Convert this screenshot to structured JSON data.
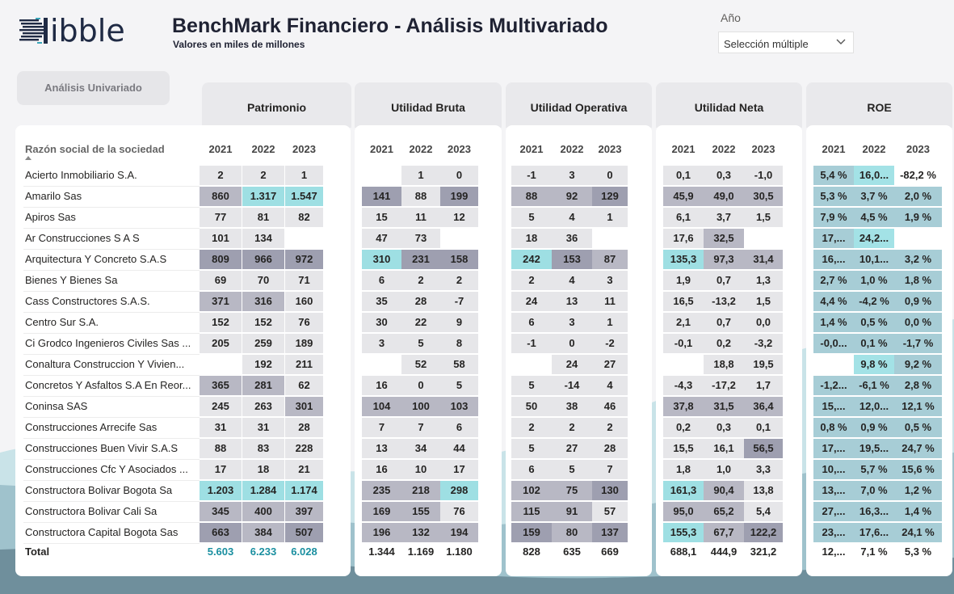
{
  "header": {
    "logo_text": "ibble",
    "title": "BenchMark Financiero - Análisis Multivariado",
    "subtitle": "Valores en miles de millones",
    "year_label": "Año",
    "year_slicer_value": "Selección múltiple"
  },
  "nav": {
    "univariate_button": "Análisis Univariado"
  },
  "columns_header": "Razón social de la sociedad",
  "years": [
    "2021",
    "2022",
    "2023"
  ],
  "total_label": "Total",
  "companies": [
    "Acierto Inmobiliario S.A.",
    "Amarilo Sas",
    "Apiros Sas",
    "Ar Construcciones S A S",
    "Arquitectura Y Concreto S.A.S",
    "Bienes Y Bienes Sa",
    "Cass Constructores S.A.S.",
    "Centro Sur S.A.",
    "Ci Grodco Ingenieros Civiles Sas ...",
    "Conaltura Construccion Y Vivien...",
    "Concretos Y Asfaltos S.A En Reor...",
    "Coninsa SAS",
    "Construcciones Arrecife Sas",
    "Construcciones Buen Vivir S.A.S",
    "Construcciones Cfc Y Asociados ...",
    "Constructora Bolivar Bogota Sa",
    "Constructora Bolivar Cali Sa",
    "Constructora Capital Bogota Sas"
  ],
  "metrics": [
    {
      "name": "Patrimonio",
      "rows": [
        [
          "2",
          "2",
          "1"
        ],
        [
          "860",
          "1.317",
          "1.547"
        ],
        [
          "77",
          "81",
          "82"
        ],
        [
          "101",
          "134",
          ""
        ],
        [
          "809",
          "966",
          "972"
        ],
        [
          "69",
          "70",
          "71"
        ],
        [
          "371",
          "316",
          "160"
        ],
        [
          "152",
          "152",
          "76"
        ],
        [
          "205",
          "259",
          "189"
        ],
        [
          "",
          "192",
          "211"
        ],
        [
          "365",
          "281",
          "62"
        ],
        [
          "245",
          "263",
          "301"
        ],
        [
          "31",
          "31",
          "28"
        ],
        [
          "88",
          "83",
          "228"
        ],
        [
          "17",
          "18",
          "21"
        ],
        [
          "1.203",
          "1.284",
          "1.174"
        ],
        [
          "345",
          "400",
          "397"
        ],
        [
          "663",
          "384",
          "507"
        ]
      ],
      "colors": [
        [
          "l",
          "l",
          "l"
        ],
        [
          "m",
          "t",
          "t"
        ],
        [
          "l",
          "l",
          "l"
        ],
        [
          "l",
          "l",
          "n"
        ],
        [
          "d",
          "d",
          "d"
        ],
        [
          "l",
          "l",
          "l"
        ],
        [
          "m",
          "m",
          "l"
        ],
        [
          "l",
          "l",
          "l"
        ],
        [
          "l",
          "l",
          "l"
        ],
        [
          "n",
          "l",
          "l"
        ],
        [
          "m",
          "m",
          "l"
        ],
        [
          "l",
          "l",
          "m"
        ],
        [
          "l",
          "l",
          "l"
        ],
        [
          "l",
          "l",
          "l"
        ],
        [
          "l",
          "l",
          "l"
        ],
        [
          "t",
          "t",
          "t"
        ],
        [
          "m",
          "m",
          "m"
        ],
        [
          "d",
          "m",
          "d"
        ]
      ],
      "totals": [
        "5.603",
        "6.233",
        "6.028"
      ]
    },
    {
      "name": "Utilidad Bruta",
      "rows": [
        [
          "",
          "1",
          "0"
        ],
        [
          "141",
          "88",
          "199"
        ],
        [
          "15",
          "11",
          "12"
        ],
        [
          "47",
          "73",
          ""
        ],
        [
          "310",
          "231",
          "158"
        ],
        [
          "6",
          "2",
          "2"
        ],
        [
          "35",
          "28",
          "-7"
        ],
        [
          "30",
          "22",
          "9"
        ],
        [
          "3",
          "5",
          "8"
        ],
        [
          "",
          "52",
          "58"
        ],
        [
          "16",
          "0",
          "5"
        ],
        [
          "104",
          "100",
          "103"
        ],
        [
          "7",
          "7",
          "6"
        ],
        [
          "13",
          "34",
          "44"
        ],
        [
          "16",
          "10",
          "17"
        ],
        [
          "235",
          "218",
          "298"
        ],
        [
          "169",
          "155",
          "76"
        ],
        [
          "196",
          "132",
          "194"
        ]
      ],
      "colors": [
        [
          "n",
          "l",
          "l"
        ],
        [
          "d",
          "l",
          "d"
        ],
        [
          "l",
          "l",
          "l"
        ],
        [
          "l",
          "l",
          "n"
        ],
        [
          "t",
          "d",
          "d"
        ],
        [
          "l",
          "l",
          "l"
        ],
        [
          "l",
          "l",
          "l"
        ],
        [
          "l",
          "l",
          "l"
        ],
        [
          "l",
          "l",
          "l"
        ],
        [
          "n",
          "l",
          "l"
        ],
        [
          "l",
          "l",
          "l"
        ],
        [
          "m",
          "m",
          "m"
        ],
        [
          "l",
          "l",
          "l"
        ],
        [
          "l",
          "l",
          "l"
        ],
        [
          "l",
          "l",
          "l"
        ],
        [
          "m",
          "m",
          "t"
        ],
        [
          "m",
          "m",
          "l"
        ],
        [
          "m",
          "m",
          "m"
        ]
      ],
      "totals": [
        "1.344",
        "1.169",
        "1.180"
      ]
    },
    {
      "name": "Utilidad Operativa",
      "rows": [
        [
          "-1",
          "3",
          "0"
        ],
        [
          "88",
          "92",
          "129"
        ],
        [
          "5",
          "4",
          "1"
        ],
        [
          "18",
          "36",
          ""
        ],
        [
          "242",
          "153",
          "87"
        ],
        [
          "2",
          "4",
          "3"
        ],
        [
          "24",
          "13",
          "11"
        ],
        [
          "6",
          "3",
          "1"
        ],
        [
          "-1",
          "0",
          "-2"
        ],
        [
          "",
          "24",
          "27"
        ],
        [
          "5",
          "-14",
          "4"
        ],
        [
          "50",
          "38",
          "46"
        ],
        [
          "2",
          "2",
          "2"
        ],
        [
          "5",
          "27",
          "28"
        ],
        [
          "6",
          "5",
          "7"
        ],
        [
          "102",
          "75",
          "130"
        ],
        [
          "115",
          "91",
          "57"
        ],
        [
          "159",
          "80",
          "137"
        ]
      ],
      "colors": [
        [
          "l",
          "l",
          "l"
        ],
        [
          "m",
          "m",
          "d"
        ],
        [
          "l",
          "l",
          "l"
        ],
        [
          "l",
          "l",
          "n"
        ],
        [
          "t",
          "d",
          "m"
        ],
        [
          "l",
          "l",
          "l"
        ],
        [
          "l",
          "l",
          "l"
        ],
        [
          "l",
          "l",
          "l"
        ],
        [
          "l",
          "l",
          "l"
        ],
        [
          "n",
          "l",
          "l"
        ],
        [
          "l",
          "l",
          "l"
        ],
        [
          "l",
          "l",
          "l"
        ],
        [
          "l",
          "l",
          "l"
        ],
        [
          "l",
          "l",
          "l"
        ],
        [
          "l",
          "l",
          "l"
        ],
        [
          "m",
          "m",
          "d"
        ],
        [
          "m",
          "m",
          "l"
        ],
        [
          "d",
          "m",
          "d"
        ]
      ],
      "totals": [
        "828",
        "635",
        "669"
      ]
    },
    {
      "name": "Utilidad Neta",
      "rows": [
        [
          "0,1",
          "0,3",
          "-1,0"
        ],
        [
          "45,9",
          "49,0",
          "30,5"
        ],
        [
          "6,1",
          "3,7",
          "1,5"
        ],
        [
          "17,6",
          "32,5",
          ""
        ],
        [
          "135,3",
          "97,3",
          "31,4"
        ],
        [
          "1,9",
          "0,7",
          "1,3"
        ],
        [
          "16,5",
          "-13,2",
          "1,5"
        ],
        [
          "2,1",
          "0,7",
          "0,0"
        ],
        [
          "-0,1",
          "0,2",
          "-3,2"
        ],
        [
          "",
          "18,8",
          "19,5"
        ],
        [
          "-4,3",
          "-17,2",
          "1,7"
        ],
        [
          "37,8",
          "31,5",
          "36,4"
        ],
        [
          "0,2",
          "0,3",
          "0,1"
        ],
        [
          "15,5",
          "16,1",
          "56,5"
        ],
        [
          "1,8",
          "1,0",
          "3,3"
        ],
        [
          "161,3",
          "90,4",
          "13,8"
        ],
        [
          "95,0",
          "65,2",
          "5,4"
        ],
        [
          "155,3",
          "67,7",
          "122,2"
        ]
      ],
      "colors": [
        [
          "l",
          "l",
          "l"
        ],
        [
          "m",
          "m",
          "m"
        ],
        [
          "l",
          "l",
          "l"
        ],
        [
          "l",
          "m",
          "n"
        ],
        [
          "t",
          "m",
          "m"
        ],
        [
          "l",
          "l",
          "l"
        ],
        [
          "l",
          "l",
          "l"
        ],
        [
          "l",
          "l",
          "l"
        ],
        [
          "l",
          "l",
          "l"
        ],
        [
          "n",
          "l",
          "l"
        ],
        [
          "l",
          "l",
          "l"
        ],
        [
          "m",
          "m",
          "m"
        ],
        [
          "l",
          "l",
          "l"
        ],
        [
          "l",
          "l",
          "d"
        ],
        [
          "l",
          "l",
          "l"
        ],
        [
          "t",
          "m",
          "l"
        ],
        [
          "m",
          "m",
          "l"
        ],
        [
          "t",
          "m",
          "d"
        ]
      ],
      "totals": [
        "688,1",
        "444,9",
        "321,2"
      ]
    },
    {
      "name": "ROE",
      "rows": [
        [
          "5,4 %",
          "16,0...",
          "-82,2 %"
        ],
        [
          "5,3 %",
          "3,7 %",
          "2,0 %"
        ],
        [
          "7,9 %",
          "4,5 %",
          "1,9 %"
        ],
        [
          "17,...",
          "24,2...",
          ""
        ],
        [
          "16,...",
          "10,1...",
          "3,2 %"
        ],
        [
          "2,7 %",
          "1,0 %",
          "1,8 %"
        ],
        [
          "4,4 %",
          "-4,2 %",
          "0,9 %"
        ],
        [
          "1,4 %",
          "0,5 %",
          "0,0 %"
        ],
        [
          "-0,0...",
          "0,1 %",
          "-1,7 %"
        ],
        [
          "",
          "9,8 %",
          "9,2 %"
        ],
        [
          "-1,2...",
          "-6,1 %",
          "2,8 %"
        ],
        [
          "15,...",
          "12,0...",
          "12,1 %"
        ],
        [
          "0,8 %",
          "0,9 %",
          "0,5 %"
        ],
        [
          "17,...",
          "19,5...",
          "24,7 %"
        ],
        [
          "10,...",
          "5,7 %",
          "15,6 %"
        ],
        [
          "13,...",
          "7,0 %",
          "1,2 %"
        ],
        [
          "27,...",
          "16,3...",
          "1,4 %"
        ],
        [
          "23,...",
          "17,6...",
          "24,1 %"
        ]
      ],
      "colors": [
        [
          "s",
          "t",
          "w"
        ],
        [
          "s",
          "s",
          "s"
        ],
        [
          "s",
          "s",
          "s"
        ],
        [
          "s",
          "t",
          "n"
        ],
        [
          "s",
          "s",
          "s"
        ],
        [
          "s",
          "s",
          "s"
        ],
        [
          "s",
          "s",
          "s"
        ],
        [
          "s",
          "s",
          "s"
        ],
        [
          "s",
          "s",
          "s"
        ],
        [
          "n",
          "t",
          "s"
        ],
        [
          "s",
          "s",
          "s"
        ],
        [
          "s",
          "s",
          "s"
        ],
        [
          "s",
          "s",
          "s"
        ],
        [
          "s",
          "s",
          "s"
        ],
        [
          "s",
          "s",
          "s"
        ],
        [
          "s",
          "s",
          "s"
        ],
        [
          "s",
          "s",
          "s"
        ],
        [
          "s",
          "s",
          "s"
        ]
      ],
      "totals": [
        "12,...",
        "7,1 %",
        "5,3 %"
      ]
    }
  ],
  "palette": {
    "light": "#e6e6e9",
    "medium": "#b8b8c4",
    "dark": "#9e9fb0",
    "teal": "#9edfe3",
    "steel": "#a7cdd6",
    "roe_teal": "#a3e2e6",
    "total_teal": "#1a8fa0"
  }
}
